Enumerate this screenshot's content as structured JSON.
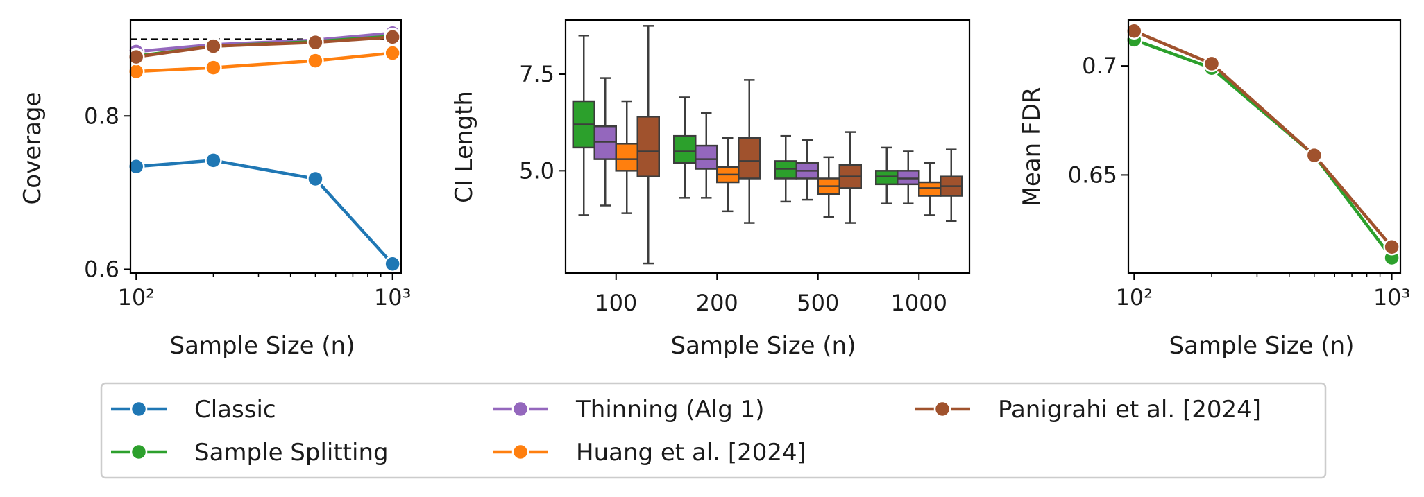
{
  "chart_data": [
    {
      "type": "line",
      "xscale": "log",
      "xlim": [
        95,
        1080
      ],
      "ylim": [
        0.595,
        0.925
      ],
      "xticks": [
        100,
        1000
      ],
      "xtick_labels": [
        "10²",
        "10³"
      ],
      "yticks": [
        0.6,
        0.8
      ],
      "ytick_labels": [
        "0.6",
        "0.8"
      ],
      "xlabel": "Sample Size (n)",
      "ylabel": "Coverage",
      "reference_line": 0.9,
      "x": [
        100,
        200,
        500,
        1000
      ],
      "series": [
        {
          "name": "Classic",
          "values": [
            0.734,
            0.742,
            0.718,
            0.607
          ]
        },
        {
          "name": "Sample Splitting",
          "values": [
            0.878,
            0.891,
            0.897,
            0.904
          ]
        },
        {
          "name": "Thinning (Alg 1)",
          "values": [
            0.884,
            0.893,
            0.899,
            0.908
          ]
        },
        {
          "name": "Huang et al. [2024]",
          "values": [
            0.858,
            0.863,
            0.872,
            0.882
          ]
        },
        {
          "name": "Panigrahi et al. [2024]",
          "values": [
            0.877,
            0.891,
            0.896,
            0.903
          ]
        }
      ]
    },
    {
      "type": "box",
      "categories": [
        "100",
        "200",
        "500",
        "1000"
      ],
      "xlabel": "Sample Size (n)",
      "ylabel": "CI Length",
      "ylim": [
        2.35,
        8.9
      ],
      "yticks": [
        5.0,
        7.5
      ],
      "ytick_labels": [
        "5.0",
        "7.5"
      ],
      "series": [
        {
          "name": "Sample Splitting",
          "boxes": [
            {
              "min": 3.85,
              "q1": 5.6,
              "median": 6.2,
              "q3": 6.8,
              "max": 8.5
            },
            {
              "min": 4.3,
              "q1": 5.2,
              "median": 5.5,
              "q3": 5.9,
              "max": 6.9
            },
            {
              "min": 4.2,
              "q1": 4.8,
              "median": 5.05,
              "q3": 5.25,
              "max": 5.9
            },
            {
              "min": 4.15,
              "q1": 4.65,
              "median": 4.85,
              "q3": 5.0,
              "max": 5.6
            }
          ]
        },
        {
          "name": "Thinning (Alg 1)",
          "boxes": [
            {
              "min": 4.1,
              "q1": 5.3,
              "median": 5.75,
              "q3": 6.15,
              "max": 7.4
            },
            {
              "min": 4.3,
              "q1": 5.05,
              "median": 5.3,
              "q3": 5.65,
              "max": 6.5
            },
            {
              "min": 4.25,
              "q1": 4.8,
              "median": 5.0,
              "q3": 5.2,
              "max": 5.8
            },
            {
              "min": 4.15,
              "q1": 4.65,
              "median": 4.8,
              "q3": 5.0,
              "max": 5.5
            }
          ]
        },
        {
          "name": "Huang et al. [2024]",
          "boxes": [
            {
              "min": 3.9,
              "q1": 5.0,
              "median": 5.3,
              "q3": 5.7,
              "max": 6.8
            },
            {
              "min": 3.95,
              "q1": 4.7,
              "median": 4.9,
              "q3": 5.1,
              "max": 5.85
            },
            {
              "min": 3.8,
              "q1": 4.4,
              "median": 4.6,
              "q3": 4.8,
              "max": 5.35
            },
            {
              "min": 3.85,
              "q1": 4.35,
              "median": 4.55,
              "q3": 4.7,
              "max": 5.2
            }
          ]
        },
        {
          "name": "Panigrahi et al. [2024]",
          "boxes": [
            {
              "min": 2.6,
              "q1": 4.85,
              "median": 5.5,
              "q3": 6.4,
              "max": 8.75
            },
            {
              "min": 3.65,
              "q1": 4.8,
              "median": 5.25,
              "q3": 5.85,
              "max": 7.35
            },
            {
              "min": 3.65,
              "q1": 4.55,
              "median": 4.85,
              "q3": 5.15,
              "max": 6.0
            },
            {
              "min": 3.7,
              "q1": 4.35,
              "median": 4.6,
              "q3": 4.85,
              "max": 5.55
            }
          ]
        }
      ]
    },
    {
      "type": "line",
      "xscale": "log",
      "xlim": [
        95,
        1080
      ],
      "ylim": [
        0.605,
        0.721
      ],
      "xticks": [
        100,
        1000
      ],
      "xtick_labels": [
        "10²",
        "10³"
      ],
      "yticks": [
        0.65,
        0.7
      ],
      "ytick_labels": [
        "0.65",
        "0.7"
      ],
      "xlabel": "Sample Size (n)",
      "ylabel": "Mean FDR",
      "x": [
        100,
        200,
        500,
        1000
      ],
      "series": [
        {
          "name": "Sample Splitting",
          "values": [
            0.712,
            0.699,
            0.659,
            0.612
          ]
        },
        {
          "name": "Panigrahi et al. [2024]",
          "values": [
            0.716,
            0.701,
            0.659,
            0.617
          ]
        }
      ]
    }
  ],
  "legend": [
    {
      "label": "Classic",
      "color": "#1f77b4"
    },
    {
      "label": "Sample Splitting",
      "color": "#2ca02c"
    },
    {
      "label": "Thinning (Alg 1)",
      "color": "#9467bd"
    },
    {
      "label": "Huang et al. [2024]",
      "color": "#ff7f0e"
    },
    {
      "label": "Panigrahi et al. [2024]",
      "color": "#a0522d"
    }
  ],
  "colors": {
    "Classic": "#1f77b4",
    "Sample Splitting": "#2ca02c",
    "Thinning (Alg 1)": "#9467bd",
    "Huang et al. [2024]": "#ff7f0e",
    "Panigrahi et al. [2024]": "#a0522d",
    "reference_line": "#000000",
    "box_edge": "#3d3d3d"
  }
}
